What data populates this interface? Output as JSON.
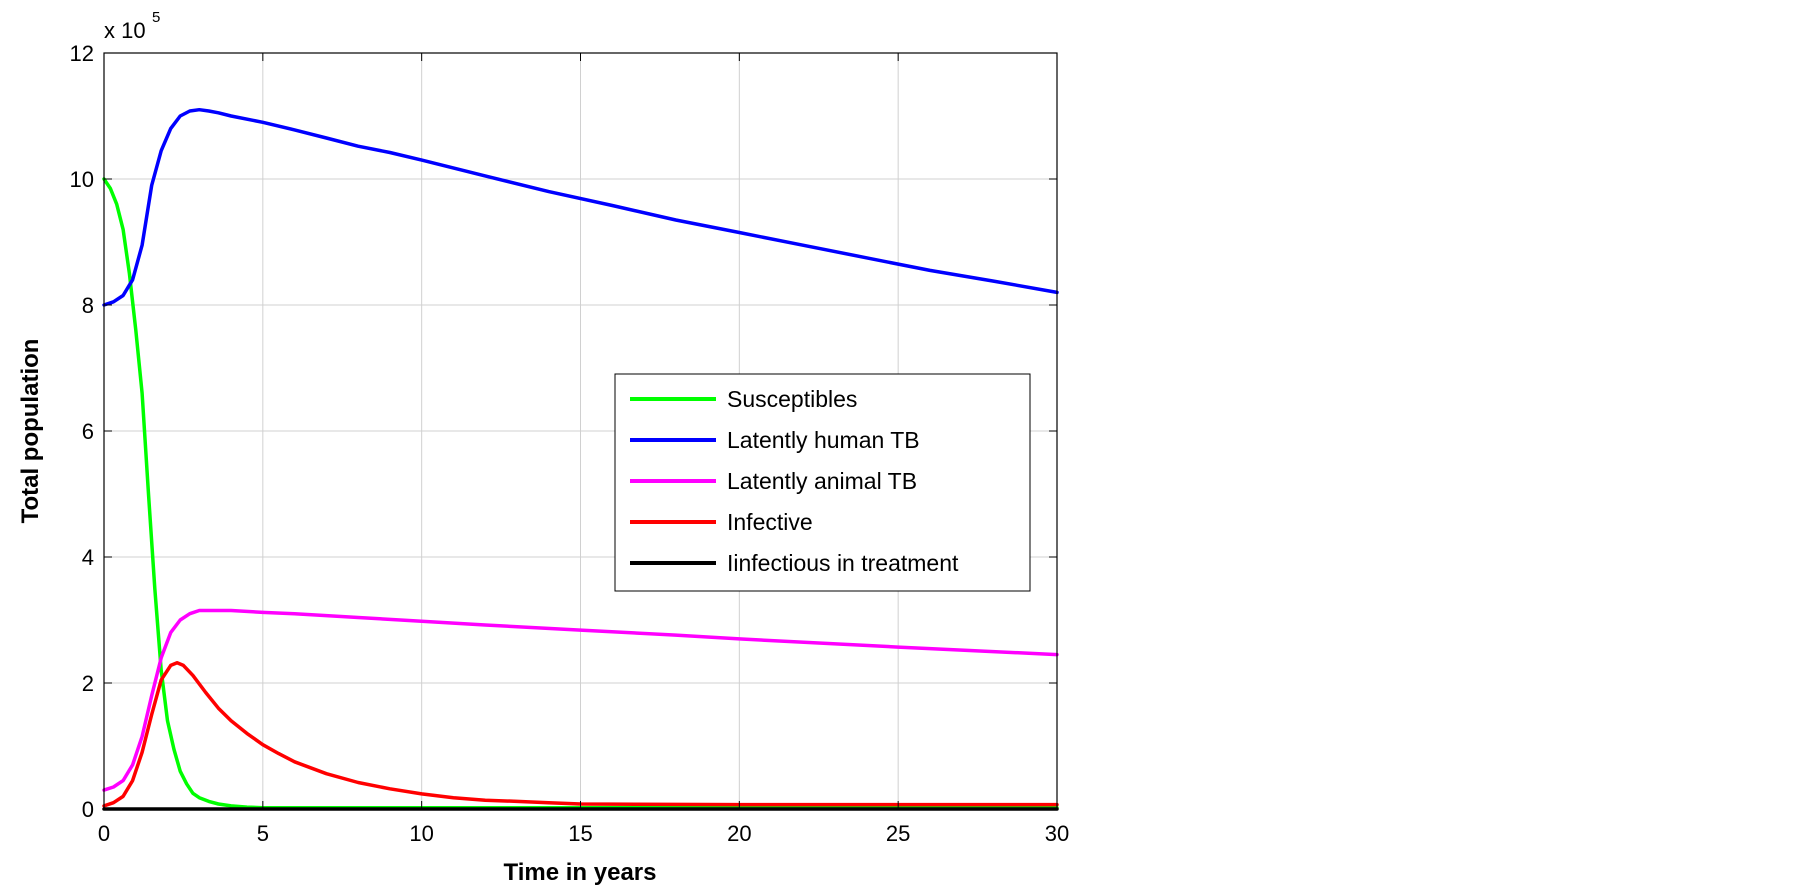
{
  "chart_data": {
    "type": "line",
    "xlabel": "Time in years",
    "ylabel": "Total population",
    "y_multiplier_label": "x 10",
    "y_multiplier_exponent": "5",
    "xlim": [
      0,
      30
    ],
    "ylim": [
      0,
      12
    ],
    "xticks": [
      "0",
      "5",
      "10",
      "15",
      "20",
      "25",
      "30"
    ],
    "yticks": [
      "0",
      "2",
      "4",
      "6",
      "8",
      "10",
      "12"
    ],
    "grid": true,
    "legend_position": "center-right",
    "series": [
      {
        "name": "Susceptibles",
        "color": "#00ff00",
        "x": [
          0,
          0.2,
          0.4,
          0.6,
          0.8,
          1.0,
          1.2,
          1.4,
          1.6,
          1.8,
          2.0,
          2.2,
          2.4,
          2.6,
          2.8,
          3.0,
          3.3,
          3.6,
          4.0,
          4.5,
          5,
          10,
          15,
          20,
          25,
          30
        ],
        "y": [
          10.0,
          9.85,
          9.6,
          9.2,
          8.5,
          7.6,
          6.6,
          5.0,
          3.5,
          2.2,
          1.4,
          0.95,
          0.6,
          0.4,
          0.25,
          0.18,
          0.12,
          0.08,
          0.05,
          0.03,
          0.02,
          0.02,
          0.02,
          0.02,
          0.02,
          0.02
        ]
      },
      {
        "name": "Latently human TB",
        "color": "#0000ff",
        "x": [
          0,
          0.3,
          0.6,
          0.9,
          1.2,
          1.5,
          1.8,
          2.1,
          2.4,
          2.7,
          3.0,
          3.3,
          3.6,
          4,
          5,
          6,
          7,
          8,
          9,
          10,
          12,
          14,
          16,
          18,
          20,
          22,
          24,
          26,
          28,
          30
        ],
        "y": [
          8.0,
          8.05,
          8.15,
          8.4,
          8.95,
          9.9,
          10.45,
          10.8,
          11.0,
          11.08,
          11.1,
          11.08,
          11.05,
          11.0,
          10.9,
          10.78,
          10.65,
          10.52,
          10.42,
          10.3,
          10.05,
          9.8,
          9.58,
          9.35,
          9.15,
          8.95,
          8.75,
          8.55,
          8.38,
          8.2
        ]
      },
      {
        "name": "Latently animal TB",
        "color": "#ff00ff",
        "x": [
          0,
          0.3,
          0.6,
          0.9,
          1.2,
          1.5,
          1.8,
          2.1,
          2.4,
          2.7,
          3.0,
          3.5,
          4,
          5,
          6,
          7,
          8,
          10,
          12,
          15,
          18,
          20,
          25,
          30
        ],
        "y": [
          0.3,
          0.35,
          0.45,
          0.7,
          1.15,
          1.8,
          2.4,
          2.8,
          3.0,
          3.1,
          3.15,
          3.15,
          3.15,
          3.12,
          3.1,
          3.07,
          3.04,
          2.98,
          2.92,
          2.84,
          2.76,
          2.7,
          2.57,
          2.45
        ]
      },
      {
        "name": "Infective",
        "color": "#ff0000",
        "x": [
          0,
          0.3,
          0.6,
          0.9,
          1.2,
          1.5,
          1.8,
          2.1,
          2.3,
          2.5,
          2.8,
          3.2,
          3.6,
          4,
          4.5,
          5,
          5.5,
          6,
          7,
          8,
          9,
          10,
          11,
          12,
          13,
          14,
          15,
          20,
          25,
          30
        ],
        "y": [
          0.05,
          0.1,
          0.2,
          0.45,
          0.9,
          1.5,
          2.05,
          2.28,
          2.32,
          2.28,
          2.12,
          1.85,
          1.6,
          1.4,
          1.2,
          1.02,
          0.88,
          0.75,
          0.56,
          0.42,
          0.32,
          0.24,
          0.18,
          0.14,
          0.12,
          0.1,
          0.08,
          0.07,
          0.07,
          0.07
        ]
      },
      {
        "name": "Iinfectious in treatment",
        "color": "#000000",
        "x": [
          0,
          30
        ],
        "y": [
          0,
          0
        ]
      }
    ]
  }
}
